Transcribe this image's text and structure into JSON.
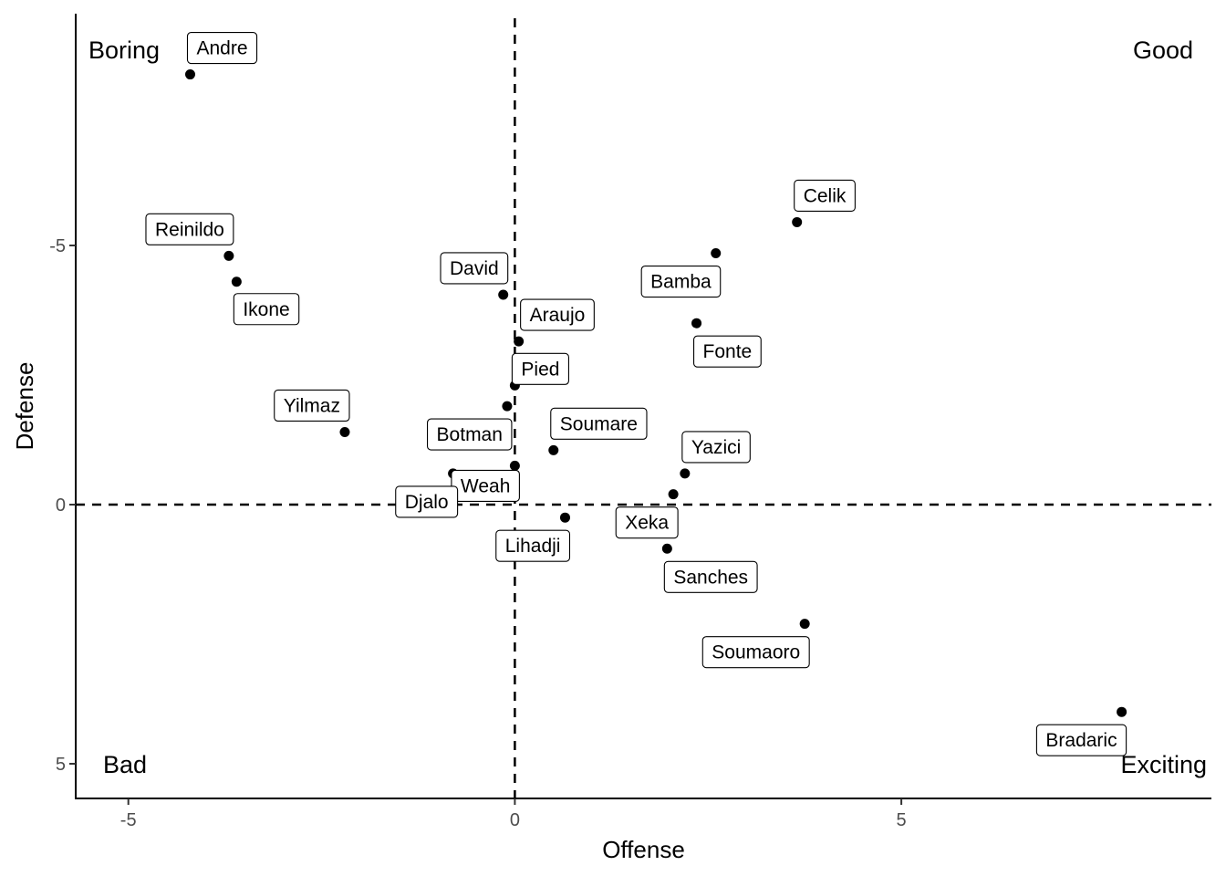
{
  "chart_data": {
    "type": "scatter",
    "xlabel": "Offense",
    "ylabel": "Defense",
    "xlim": [
      -5.7,
      9
    ],
    "ylim": [
      -9.6,
      5.7
    ],
    "y_reversed": true,
    "x_ticks": [
      -5,
      0,
      5
    ],
    "y_ticks": [
      -5,
      0,
      5
    ],
    "grid": false,
    "reference_lines": [
      {
        "axis": "x",
        "value": 0,
        "style": "dashed"
      },
      {
        "axis": "y",
        "value": 0,
        "style": "dashed"
      }
    ],
    "quadrant_labels": [
      {
        "text": "Boring",
        "position": "top-left"
      },
      {
        "text": "Good",
        "position": "top-right"
      },
      {
        "text": "Bad",
        "position": "bottom-left"
      },
      {
        "text": "Exciting",
        "position": "bottom-right"
      }
    ],
    "points": [
      {
        "label": "Andre",
        "x": -4.2,
        "y": -8.3
      },
      {
        "label": "Reinildo",
        "x": -3.7,
        "y": -4.8
      },
      {
        "label": "Ikone",
        "x": -3.6,
        "y": -4.3
      },
      {
        "label": "Yilmaz",
        "x": -2.2,
        "y": -1.4
      },
      {
        "label": "David",
        "x": -0.15,
        "y": -4.05
      },
      {
        "label": "Araujo",
        "x": 0.05,
        "y": -3.15
      },
      {
        "label": "Pied",
        "x": 0.0,
        "y": -2.3
      },
      {
        "label": "Botman",
        "x": -0.1,
        "y": -1.9
      },
      {
        "label": "Soumare",
        "x": 0.5,
        "y": -1.05
      },
      {
        "label": "Weah",
        "x": 0.0,
        "y": -0.75
      },
      {
        "label": "Djalo",
        "x": -0.8,
        "y": -0.6
      },
      {
        "label": "Lihadji",
        "x": 0.65,
        "y": 0.25
      },
      {
        "label": "Celik",
        "x": 3.65,
        "y": -5.45
      },
      {
        "label": "Bamba",
        "x": 2.6,
        "y": -4.85
      },
      {
        "label": "Fonte",
        "x": 2.35,
        "y": -3.5
      },
      {
        "label": "Yazici",
        "x": 2.2,
        "y": -0.6
      },
      {
        "label": "Xeka",
        "x": 2.05,
        "y": -0.2
      },
      {
        "label": "Sanches",
        "x": 1.97,
        "y": 0.85
      },
      {
        "label": "Soumaoro",
        "x": 3.75,
        "y": 2.3
      },
      {
        "label": "Bradaric",
        "x": 7.85,
        "y": 4.0
      }
    ]
  }
}
